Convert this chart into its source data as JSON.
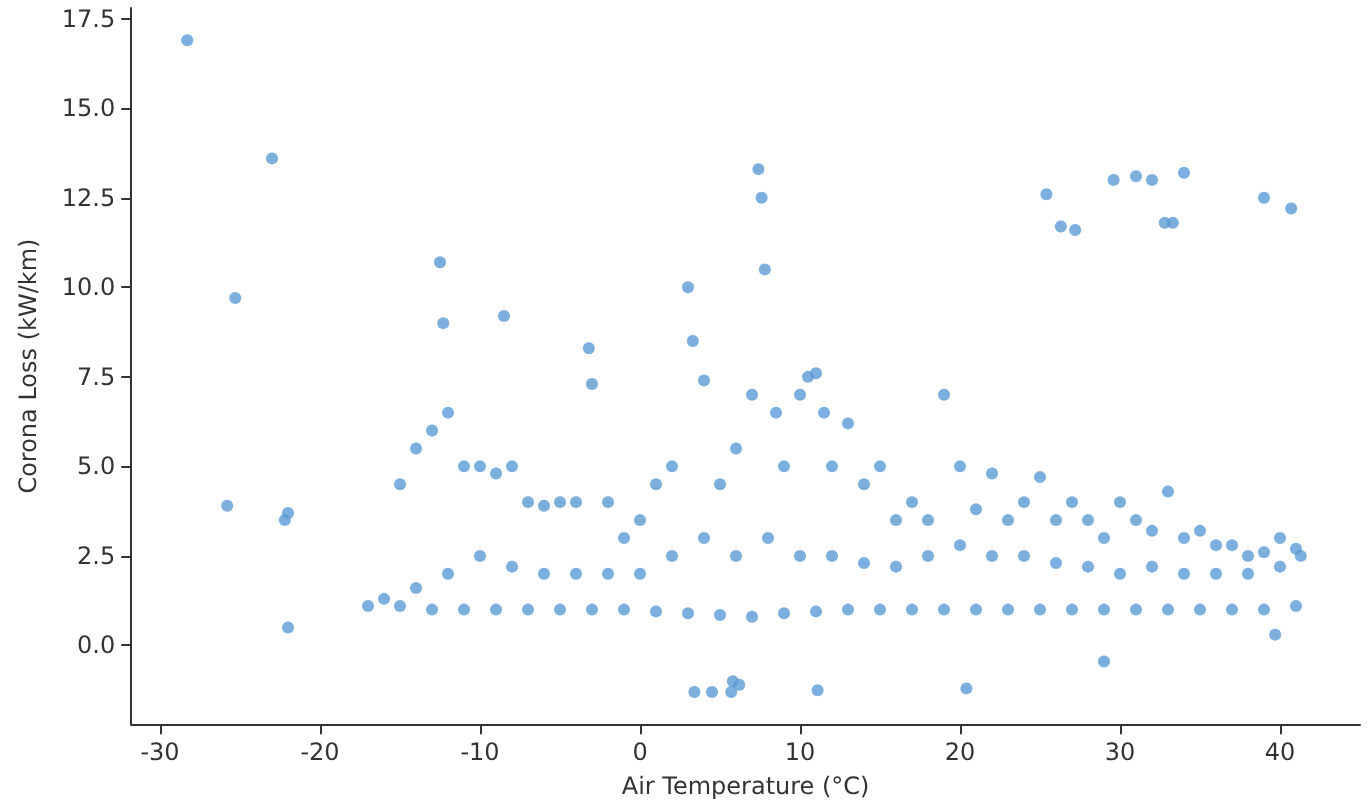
{
  "chart_data": {
    "type": "scatter",
    "xlabel": "Air Temperature (°C)",
    "ylabel": "Corona Loss (kW/km)",
    "xlim": [
      -31.8,
      45
    ],
    "ylim": [
      -2.2,
      17.8
    ],
    "xticks": [
      -30,
      -20,
      -10,
      0,
      10,
      20,
      30,
      40
    ],
    "yticks": [
      {
        "value": 0,
        "label": "0.0"
      },
      {
        "value": 2.5,
        "label": "2.5"
      },
      {
        "value": 5,
        "label": "5.0"
      },
      {
        "value": 7.5,
        "label": "7.5"
      },
      {
        "value": 10,
        "label": "10.0"
      },
      {
        "value": 12.5,
        "label": "12.5"
      },
      {
        "value": 15,
        "label": "15.0"
      },
      {
        "value": 17.5,
        "label": "17.5"
      }
    ],
    "marker": "circle",
    "series": [
      {
        "color": "#5b9bd5",
        "x": [
          -28.3,
          -23,
          -25.3,
          -25.8,
          -22,
          -22.2,
          -22,
          3.4,
          4.5,
          5.7,
          5.8,
          6.2,
          11.1,
          20.4,
          29,
          39.7,
          25.4,
          26.3,
          27.2,
          29.6,
          31,
          32,
          32.8,
          33.3,
          34,
          39,
          40.7,
          -17,
          -15,
          -13,
          -11,
          -9,
          -7,
          -5,
          -3,
          -1,
          1,
          3,
          5,
          7,
          9,
          11,
          13,
          15,
          17,
          19,
          21,
          23,
          25,
          27,
          29,
          31,
          33,
          35,
          37,
          39,
          41,
          -16,
          -14,
          -12,
          -10,
          -8,
          -6,
          -4,
          -2,
          0,
          2,
          4,
          6,
          8,
          10,
          12,
          14,
          16,
          18,
          20,
          22,
          24,
          26,
          28,
          30,
          32,
          34,
          36,
          38,
          40,
          41.3,
          -15,
          -14,
          -13,
          -12.5,
          -12.3,
          -12,
          -11,
          -10,
          -9,
          -8.5,
          -8,
          -7,
          -6,
          -5,
          -4,
          -3.2,
          -3,
          -2,
          -1,
          0,
          1,
          2,
          3,
          3.3,
          4,
          5,
          6,
          7,
          7.4,
          7.6,
          7.8,
          8.5,
          9,
          10,
          10.5,
          11,
          11.5,
          12,
          13,
          14,
          15,
          16,
          17,
          18,
          19,
          20,
          21,
          22,
          23,
          24,
          25,
          26,
          27,
          28,
          29,
          30,
          31,
          32,
          33,
          34,
          35,
          36,
          37,
          38,
          39,
          40,
          41
        ],
        "values": [
          16.9,
          13.6,
          9.7,
          3.9,
          3.7,
          3.5,
          0.5,
          -1.3,
          -1.3,
          -1.3,
          -1.0,
          -1.1,
          -1.25,
          -1.2,
          -0.45,
          0.3,
          12.6,
          11.7,
          11.6,
          13.0,
          13.1,
          13.0,
          11.8,
          11.8,
          13.2,
          12.5,
          12.2,
          1.1,
          1.1,
          1.0,
          1.0,
          1.0,
          1.0,
          1.0,
          1.0,
          1.0,
          0.95,
          0.9,
          0.85,
          0.8,
          0.9,
          0.95,
          1.0,
          1.0,
          1.0,
          1.0,
          1.0,
          1.0,
          1.0,
          1.0,
          1.0,
          1.0,
          1.0,
          1.0,
          1.0,
          1.0,
          1.1,
          1.3,
          1.6,
          2.0,
          2.5,
          2.2,
          2.0,
          2.0,
          2.0,
          2.0,
          2.5,
          3.0,
          2.5,
          3.0,
          2.5,
          2.5,
          2.3,
          2.2,
          2.5,
          2.8,
          2.5,
          2.5,
          2.3,
          2.2,
          2.0,
          2.2,
          2.0,
          2.0,
          2.0,
          2.2,
          2.5,
          4.5,
          5.5,
          6.0,
          10.7,
          9.0,
          6.5,
          5.0,
          5.0,
          4.8,
          9.2,
          5.0,
          4.0,
          3.9,
          4.0,
          4.0,
          8.3,
          7.3,
          4.0,
          3.0,
          3.5,
          4.5,
          5.0,
          10.0,
          8.5,
          7.4,
          4.5,
          5.5,
          7.0,
          13.3,
          12.5,
          10.5,
          6.5,
          5.0,
          7.0,
          7.5,
          7.6,
          6.5,
          5.0,
          6.2,
          4.5,
          5.0,
          3.5,
          4.0,
          3.5,
          7.0,
          5.0,
          3.8,
          4.8,
          3.5,
          4.0,
          4.7,
          3.5,
          4.0,
          3.5,
          3.0,
          4.0,
          3.5,
          3.2,
          4.3,
          3.0,
          3.2,
          2.8,
          2.8,
          2.5,
          2.6,
          3.0,
          2.7
        ]
      }
    ]
  }
}
